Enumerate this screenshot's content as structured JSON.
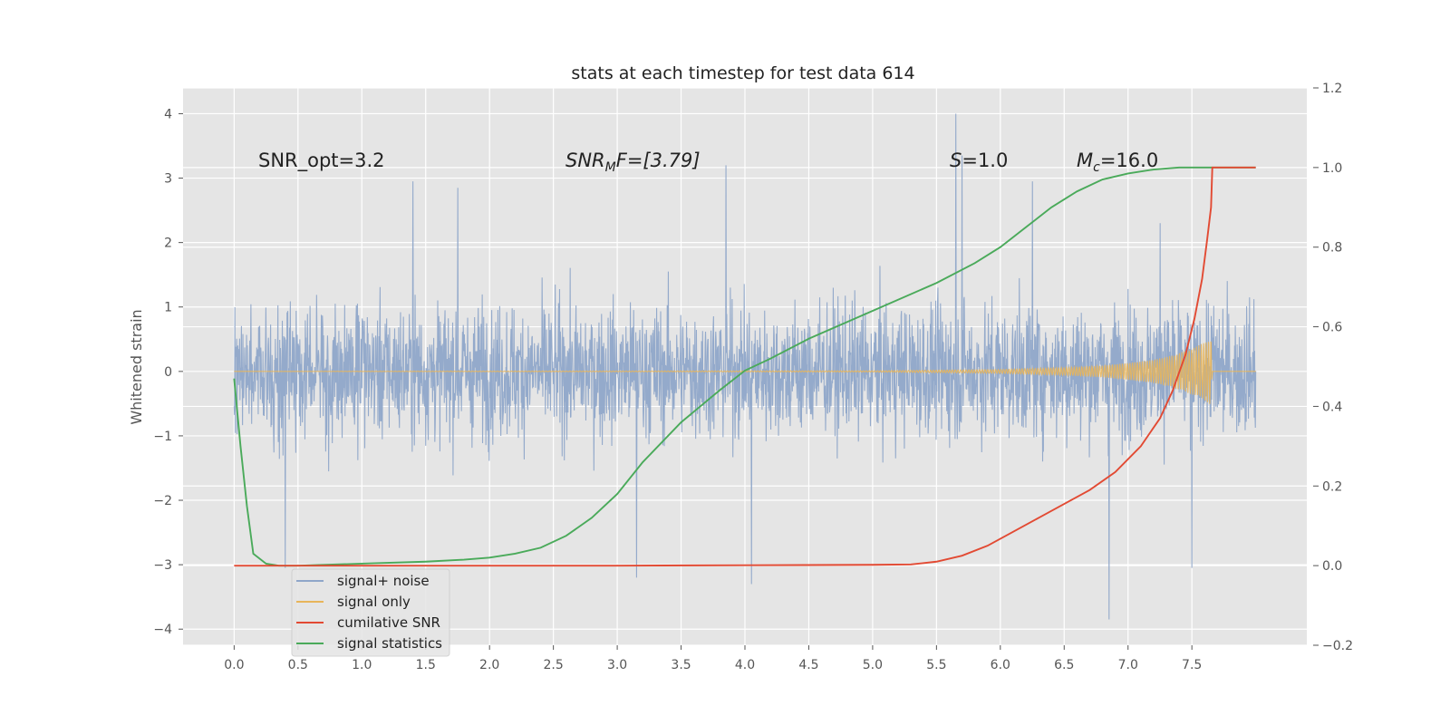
{
  "chart_data": {
    "type": "line",
    "title": "stats at each timestep for test data 614",
    "ylabel": "Whitened strain",
    "xlabel": "",
    "xlim": [
      -0.4,
      8.4
    ],
    "ylim": [
      -4.25,
      4.4
    ],
    "y2lim": [
      -0.2,
      1.2
    ],
    "xticks": [
      "0.0",
      "0.5",
      "1.0",
      "1.5",
      "2.0",
      "2.5",
      "3.0",
      "3.5",
      "4.0",
      "4.5",
      "5.0",
      "5.5",
      "6.0",
      "6.5",
      "7.0",
      "7.5"
    ],
    "yticks": [
      "4",
      "3",
      "2",
      "1",
      "0",
      "−1",
      "−2",
      "−3",
      "−4"
    ],
    "y2ticks": [
      "1.2",
      "1.0",
      "0.8",
      "0.6",
      "0.4",
      "0.2",
      "0.0",
      "−0.2"
    ],
    "grid": true,
    "legend_position": "lower-left",
    "annotations": {
      "snr_opt": "SNR_opt=3.2",
      "snr_mf_main": "SNR",
      "snr_mf_sub": "M",
      "snr_mf_tail": "F=[3.79]",
      "s_main": "S",
      "s_tail": "=1.0",
      "mc_main": "M",
      "mc_sub": "c",
      "mc_tail": "=16.0"
    },
    "series": [
      {
        "name": "signal+ noise",
        "color": "#8fa6c9",
        "axis": "left",
        "x_range": [
          0,
          8.0
        ],
        "envelope_typical": [
          -1.5,
          1.5
        ],
        "peak_samples": [
          [
            0.4,
            -3.05
          ],
          [
            1.4,
            2.95
          ],
          [
            1.75,
            2.85
          ],
          [
            3.15,
            -3.2
          ],
          [
            3.85,
            3.2
          ],
          [
            4.05,
            -3.3
          ],
          [
            5.65,
            4.0
          ],
          [
            5.7,
            3.35
          ],
          [
            6.25,
            2.95
          ],
          [
            6.85,
            -3.85
          ],
          [
            7.25,
            2.3
          ],
          [
            7.5,
            -3.05
          ]
        ]
      },
      {
        "name": "signal only",
        "color": "#e8b55a",
        "axis": "left",
        "x": [
          0,
          5.0,
          6.0,
          6.5,
          6.8,
          7.0,
          7.2,
          7.35,
          7.45,
          7.55,
          7.62,
          7.65,
          7.66,
          8.0
        ],
        "amplitude": [
          0.0,
          0.01,
          0.03,
          0.06,
          0.09,
          0.13,
          0.18,
          0.25,
          0.32,
          0.4,
          0.48,
          0.52,
          0.0,
          0.0
        ]
      },
      {
        "name": "cumilative SNR",
        "color": "#e24a33",
        "axis": "right",
        "x": [
          0,
          1.0,
          2.0,
          3.0,
          4.0,
          5.0,
          5.3,
          5.5,
          5.7,
          5.9,
          6.1,
          6.3,
          6.5,
          6.7,
          6.9,
          7.1,
          7.25,
          7.35,
          7.45,
          7.52,
          7.58,
          7.62,
          7.65,
          7.66,
          8.0
        ],
        "values": [
          0.0,
          0.0,
          0.0,
          0.0,
          0.001,
          0.002,
          0.003,
          0.01,
          0.025,
          0.05,
          0.085,
          0.12,
          0.155,
          0.19,
          0.235,
          0.3,
          0.37,
          0.44,
          0.53,
          0.62,
          0.72,
          0.82,
          0.9,
          1.0,
          1.0
        ]
      },
      {
        "name": "signal statistics",
        "color": "#4aaa5a",
        "axis": "right",
        "x": [
          0,
          0.05,
          0.1,
          0.15,
          0.25,
          0.35,
          0.5,
          1.0,
          1.5,
          1.8,
          2.0,
          2.2,
          2.4,
          2.6,
          2.8,
          3.0,
          3.2,
          3.5,
          3.8,
          4.0,
          4.2,
          4.5,
          5.0,
          5.5,
          5.8,
          6.0,
          6.2,
          6.4,
          6.6,
          6.8,
          7.0,
          7.2,
          7.4,
          7.6,
          8.0
        ],
        "values": [
          0.47,
          0.3,
          0.15,
          0.03,
          0.005,
          0.0,
          0.0,
          0.005,
          0.01,
          0.015,
          0.02,
          0.03,
          0.045,
          0.075,
          0.12,
          0.18,
          0.26,
          0.36,
          0.44,
          0.49,
          0.52,
          0.57,
          0.64,
          0.71,
          0.76,
          0.8,
          0.85,
          0.9,
          0.94,
          0.97,
          0.985,
          0.995,
          1.0,
          1.0,
          1.0
        ]
      }
    ]
  }
}
